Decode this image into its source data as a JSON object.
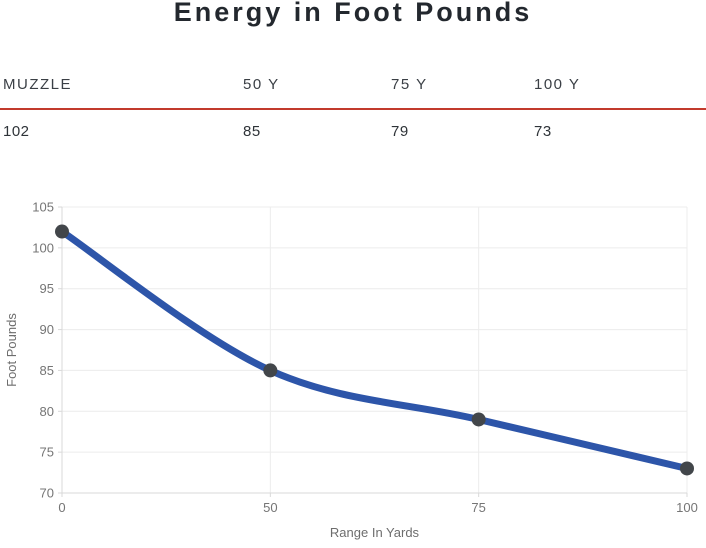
{
  "title": "Energy in Foot Pounds",
  "table": {
    "columns": [
      "MUZZLE",
      "50 Y",
      "75 Y",
      "100 Y"
    ],
    "values": [
      "102",
      "85",
      "79",
      "73"
    ],
    "divider_color": "#c23a2c"
  },
  "chart_data": {
    "type": "line",
    "title": "Energy in Foot Pounds",
    "x": [
      0,
      50,
      75,
      100
    ],
    "x_axis_type": "category",
    "series": [
      {
        "name": "Foot Pounds",
        "values": [
          102,
          85,
          79,
          73
        ]
      }
    ],
    "xlabel": "Range In Yards",
    "ylabel": "Foot Pounds",
    "ylim": [
      70,
      105
    ],
    "y_ticks": [
      70,
      75,
      80,
      85,
      90,
      95,
      100,
      105
    ],
    "grid": true,
    "legend_position": "none",
    "smooth": true,
    "line_color": "#2d55a9",
    "marker_color": "#42464a",
    "colors": {
      "grid": "#ececec",
      "axis": "#d9d9d9",
      "tick_label": "#757575",
      "axis_title": "#6d6d6d"
    }
  }
}
